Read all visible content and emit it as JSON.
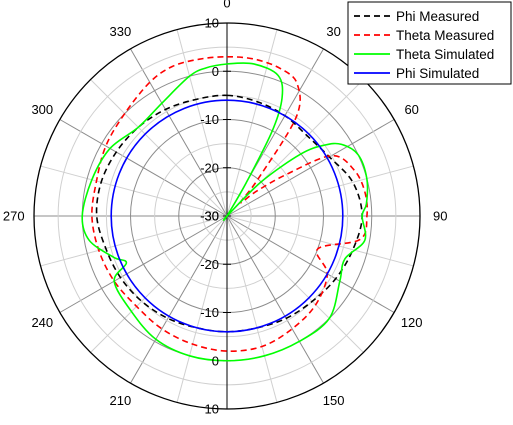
{
  "chart_data": {
    "type": "polar",
    "title": "",
    "radial_axis": {
      "min": -30,
      "max": 10,
      "ticks": [
        -30,
        -20,
        -10,
        0,
        10
      ]
    },
    "angular_axis": {
      "unit": "degrees",
      "direction": "clockwise",
      "zero_at": "top",
      "labels": [
        "0",
        "30",
        "60",
        "90",
        "120",
        "150",
        "180",
        "210",
        "240",
        "270",
        "300",
        "330"
      ],
      "minor_grid_step_deg": 15
    },
    "legend": {
      "position": "top-right"
    },
    "series": [
      {
        "name": "Phi Measured",
        "color": "#000000",
        "dash": "dashed",
        "angles": [
          0,
          15,
          30,
          45,
          60,
          75,
          90,
          105,
          120,
          135,
          150,
          165,
          180,
          195,
          210,
          225,
          240,
          255,
          270,
          285,
          300,
          315,
          330,
          345
        ],
        "values": [
          -5,
          -5.5,
          -6,
          -6.5,
          -5.5,
          -3,
          -2,
          -3,
          -4,
          -5,
          -5.5,
          -6,
          -6,
          -6,
          -5.5,
          -5,
          -4.5,
          -4,
          -3,
          -3,
          -3.5,
          -4,
          -4.5,
          -5
        ]
      },
      {
        "name": "Theta Measured",
        "color": "#ff0000",
        "dash": "dashed",
        "angles": [
          0,
          10,
          20,
          28,
          35,
          40,
          45,
          50,
          55,
          60,
          70,
          80,
          90,
          100,
          110,
          120,
          135,
          150,
          165,
          180,
          195,
          210,
          225,
          240,
          255,
          270,
          285,
          300,
          315,
          330,
          340,
          350
        ],
        "values": [
          3,
          3,
          2.5,
          1,
          -5,
          -20,
          -26,
          -22,
          -15,
          -5,
          -2,
          -1,
          -1,
          -2,
          -10,
          -6,
          -4,
          -3,
          -2,
          -2,
          -2.5,
          -3,
          -3.5,
          -3,
          -2.5,
          -2,
          -2,
          -1,
          0,
          2,
          3,
          3
        ]
      },
      {
        "name": "Theta Simulated",
        "color": "#00ff00",
        "dash": "solid",
        "angles": [
          0,
          10,
          20,
          25,
          28,
          30,
          33,
          36,
          45,
          50,
          54,
          58,
          65,
          75,
          85,
          90,
          100,
          110,
          120,
          135,
          150,
          165,
          180,
          195,
          210,
          225,
          240,
          245,
          250,
          260,
          270,
          285,
          300,
          315,
          330,
          345,
          352
        ],
        "values": [
          1.5,
          2,
          1,
          -3,
          -10,
          -22,
          -30,
          -30,
          -20,
          -10,
          -5,
          -2,
          0,
          0,
          -1,
          -2,
          -1,
          -4,
          -3,
          0,
          0,
          0,
          0,
          0,
          -0.5,
          -2,
          -3,
          -7,
          -5,
          -1,
          0,
          -1,
          -2,
          -4,
          -3,
          0,
          1
        ]
      },
      {
        "name": "Phi Simulated",
        "color": "#0000ff",
        "dash": "solid",
        "angles": [
          0,
          90,
          180,
          270
        ],
        "values": [
          -6,
          -6,
          -6,
          -6
        ]
      }
    ]
  }
}
